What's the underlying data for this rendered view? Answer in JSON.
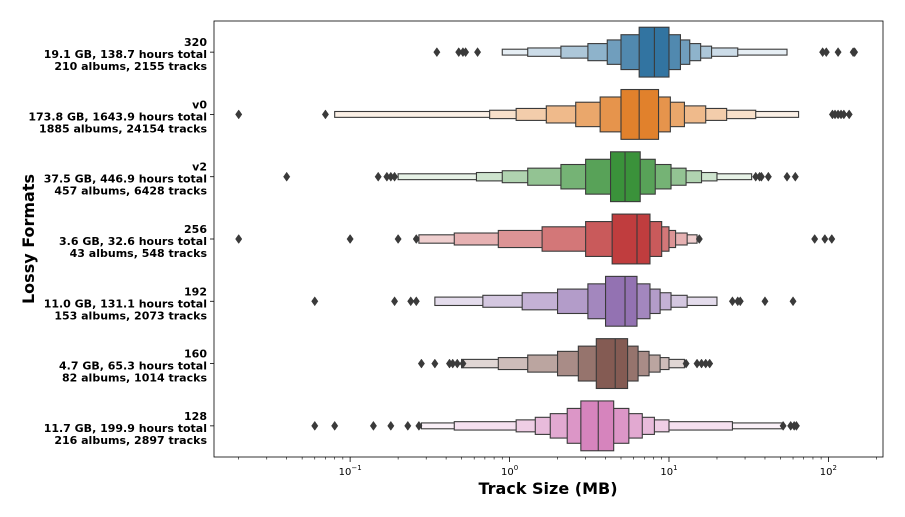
{
  "chart_data": {
    "type": "boxen",
    "orientation": "horizontal",
    "xscale": "log",
    "xlim": [
      0.014,
      220
    ],
    "xlabel": "Track Size (MB)",
    "ylabel": "Lossy Formats",
    "x_ticks": [
      {
        "value": 0.1,
        "base": "10",
        "exp": "−1"
      },
      {
        "value": 1,
        "base": "10",
        "exp": "0"
      },
      {
        "value": 10,
        "base": "10",
        "exp": "1"
      },
      {
        "value": 100,
        "base": "10",
        "exp": "2"
      }
    ],
    "categories": [
      {
        "format": "320",
        "summary": "19.1 GB, 138.7 hours total",
        "counts": "210 albums, 2155 tracks",
        "color": "#3274a1",
        "median": 8.1,
        "levels": [
          [
            6.5,
            10.0
          ],
          [
            5.0,
            11.8
          ],
          [
            4.1,
            13.5
          ],
          [
            3.1,
            15.8
          ],
          [
            2.1,
            18.5
          ],
          [
            1.3,
            27.0
          ],
          [
            0.9,
            55.0
          ]
        ],
        "outliers": [
          0.35,
          0.48,
          0.51,
          0.53,
          0.63,
          92,
          97,
          115,
          143,
          146
        ]
      },
      {
        "format": "v0",
        "summary": "173.8 GB, 1643.9 hours total",
        "counts": "1885 albums, 24154 tracks",
        "color": "#e1812c",
        "median": 6.5,
        "levels": [
          [
            5.0,
            8.6
          ],
          [
            3.7,
            10.2
          ],
          [
            2.6,
            12.5
          ],
          [
            1.7,
            17.0
          ],
          [
            1.1,
            23.0
          ],
          [
            0.75,
            35.0
          ],
          [
            0.08,
            65.0
          ]
        ],
        "outliers": [
          0.02,
          0.07,
          106,
          110,
          115,
          120,
          125,
          135
        ]
      },
      {
        "format": "v2",
        "summary": "37.5 GB, 446.9 hours total",
        "counts": "457 albums, 6428 tracks",
        "color": "#3a923a",
        "median": 5.3,
        "levels": [
          [
            4.3,
            6.6
          ],
          [
            3.0,
            8.2
          ],
          [
            2.1,
            10.3
          ],
          [
            1.3,
            12.8
          ],
          [
            0.9,
            16.0
          ],
          [
            0.62,
            20.0
          ],
          [
            0.2,
            33.0
          ]
        ],
        "outliers": [
          0.04,
          0.15,
          0.17,
          0.18,
          0.19,
          35,
          37,
          38,
          42,
          55,
          62
        ]
      },
      {
        "format": "256",
        "summary": "3.6 GB, 32.6 hours total",
        "counts": "43 albums, 548 tracks",
        "color": "#c03d3e",
        "median": 6.3,
        "levels": [
          [
            4.4,
            7.6
          ],
          [
            3.0,
            9.0
          ],
          [
            1.6,
            10.0
          ],
          [
            0.85,
            11.0
          ],
          [
            0.45,
            13.0
          ],
          [
            0.27,
            15.0
          ]
        ],
        "outliers": [
          0.02,
          0.1,
          0.2,
          0.26,
          15.5,
          82,
          95,
          105
        ]
      },
      {
        "format": "192",
        "summary": "11.0 GB, 131.1 hours total",
        "counts": "153 albums, 2073 tracks",
        "color": "#9372b2",
        "median": 5.3,
        "levels": [
          [
            4.0,
            6.3
          ],
          [
            3.1,
            7.6
          ],
          [
            2.0,
            8.8
          ],
          [
            1.2,
            10.3
          ],
          [
            0.68,
            13.0
          ],
          [
            0.34,
            20.0
          ]
        ],
        "outliers": [
          0.06,
          0.19,
          0.24,
          0.26,
          25,
          27,
          28,
          40,
          60
        ]
      },
      {
        "format": "160",
        "summary": "4.7 GB, 65.3 hours total",
        "counts": "82 albums, 1014 tracks",
        "color": "#845b53",
        "median": 4.6,
        "levels": [
          [
            3.5,
            5.5
          ],
          [
            2.7,
            6.4
          ],
          [
            2.0,
            7.5
          ],
          [
            1.3,
            8.8
          ],
          [
            0.85,
            10.0
          ],
          [
            0.5,
            12.5
          ]
        ],
        "outliers": [
          0.28,
          0.34,
          0.42,
          0.44,
          0.47,
          0.51,
          12.8,
          15,
          16,
          17,
          18
        ]
      },
      {
        "format": "128",
        "summary": "11.7 GB, 199.9 hours total",
        "counts": "216 albums, 2897 tracks",
        "color": "#d684bd",
        "median": 3.6,
        "levels": [
          [
            2.8,
            4.5
          ],
          [
            2.3,
            5.6
          ],
          [
            1.8,
            6.8
          ],
          [
            1.45,
            8.1
          ],
          [
            1.1,
            10.0
          ],
          [
            0.45,
            25.0
          ],
          [
            0.28,
            52.0
          ]
        ],
        "outliers": [
          0.06,
          0.08,
          0.14,
          0.18,
          0.23,
          0.27,
          52,
          58,
          61,
          63
        ]
      }
    ]
  }
}
